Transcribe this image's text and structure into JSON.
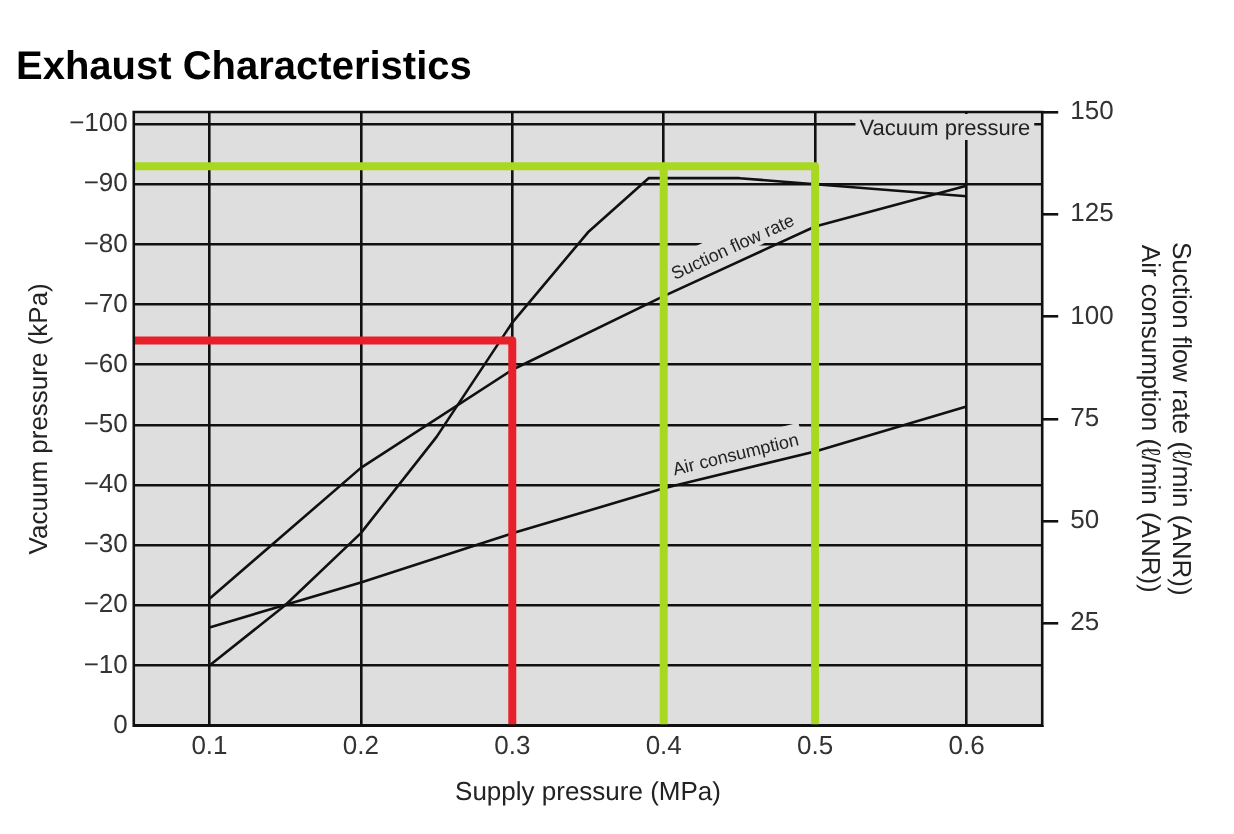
{
  "chart_data": {
    "type": "line",
    "title": "Exhaust Characteristics",
    "xlabel": "Supply pressure (MPa)",
    "ylabel": "Vacuum pressure (kPa)",
    "y2label": "Suction flow rate (ℓ/min (ANR))\nAir consumption (ℓ/min (ANR))",
    "xlim": [
      0.05,
      0.65
    ],
    "xticks": [
      0.1,
      0.2,
      0.3,
      0.4,
      0.5,
      0.6
    ],
    "ylim": [
      0,
      -102
    ],
    "yticks": [
      0,
      -10,
      -20,
      -30,
      -40,
      -50,
      -60,
      -70,
      -80,
      -90,
      -100
    ],
    "y2lim": [
      0,
      150
    ],
    "y2ticks": [
      25,
      50,
      75,
      100,
      125,
      150
    ],
    "grid": true,
    "legend": false,
    "marker": "none",
    "line_style": "solid",
    "series": [
      {
        "name": "Vacuum pressure",
        "color": "#111111",
        "x": [
          0.1,
          0.15,
          0.2,
          0.25,
          0.3,
          0.35,
          0.39,
          0.45,
          0.5,
          0.6
        ],
        "values": [
          -10,
          -20,
          -32,
          -48,
          -67,
          -82,
          -91,
          -91,
          -90,
          -88
        ]
      },
      {
        "name": "Suction flow rate",
        "color": "#111111",
        "axis": "y2",
        "x": [
          0.1,
          0.2,
          0.3,
          0.4,
          0.5,
          0.6
        ],
        "values": [
          31,
          63,
          87,
          105,
          122,
          132
        ]
      },
      {
        "name": "Air consumption",
        "color": "#111111",
        "axis": "y2",
        "x": [
          0.1,
          0.2,
          0.3,
          0.4,
          0.5,
          0.6
        ],
        "values": [
          24,
          35,
          47,
          58,
          67,
          78
        ]
      },
      {
        "color": "#e8202a",
        "x": [
          0.05,
          0.3,
          0.3
        ],
        "values": [
          -64,
          -64,
          0
        ]
      },
      {
        "color": "#a8d820",
        "x": [
          0.05,
          0.5,
          0.5
        ],
        "values": [
          -93,
          -93,
          0
        ]
      },
      {
        "color": "#a8d820",
        "x": [
          0.4,
          0.4
        ],
        "values": [
          0,
          -93
        ]
      }
    ]
  }
}
